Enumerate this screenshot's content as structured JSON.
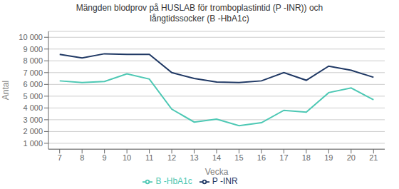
{
  "chart_data": {
    "type": "line",
    "title": "Mängden blodprov på HUSLAB för tromboplastintid (P -INR)) och\nlångtidssocker (B -HbA1c)",
    "xlabel": "Vecka",
    "ylabel": "Antal",
    "x": [
      7,
      8,
      9,
      10,
      11,
      12,
      13,
      14,
      15,
      16,
      17,
      18,
      19,
      20,
      21
    ],
    "series": [
      {
        "name": "B -HbA1c",
        "color": "#4DC8B4",
        "values": [
          6300,
          6150,
          6250,
          6900,
          6450,
          3900,
          2800,
          3050,
          2500,
          2750,
          3800,
          3650,
          5300,
          5700,
          4700
        ]
      },
      {
        "name": "P -INR",
        "color": "#1F3864",
        "values": [
          8550,
          8250,
          8600,
          8550,
          8550,
          7000,
          6500,
          6200,
          6150,
          6300,
          7000,
          6350,
          7550,
          7200,
          6600
        ]
      }
    ],
    "xlim": [
      6.5,
      21.5
    ],
    "xticks": [
      7,
      8,
      9,
      10,
      11,
      12,
      13,
      14,
      15,
      16,
      17,
      18,
      19,
      20,
      21
    ],
    "ylim": [
      500,
      10500
    ],
    "yticks": [
      {
        "value": 1000,
        "label": "1 000"
      },
      {
        "value": 2000,
        "label": "2 000"
      },
      {
        "value": 3000,
        "label": "3 000"
      },
      {
        "value": 4000,
        "label": "4 000"
      },
      {
        "value": 5000,
        "label": "5 000"
      },
      {
        "value": 6000,
        "label": "6 000"
      },
      {
        "value": 7000,
        "label": "7 000"
      },
      {
        "value": 8000,
        "label": "8 000"
      },
      {
        "value": 9000,
        "label": "9 000"
      },
      {
        "value": 10000,
        "label": "10 000"
      }
    ],
    "grid": true,
    "legend": "bottom"
  }
}
